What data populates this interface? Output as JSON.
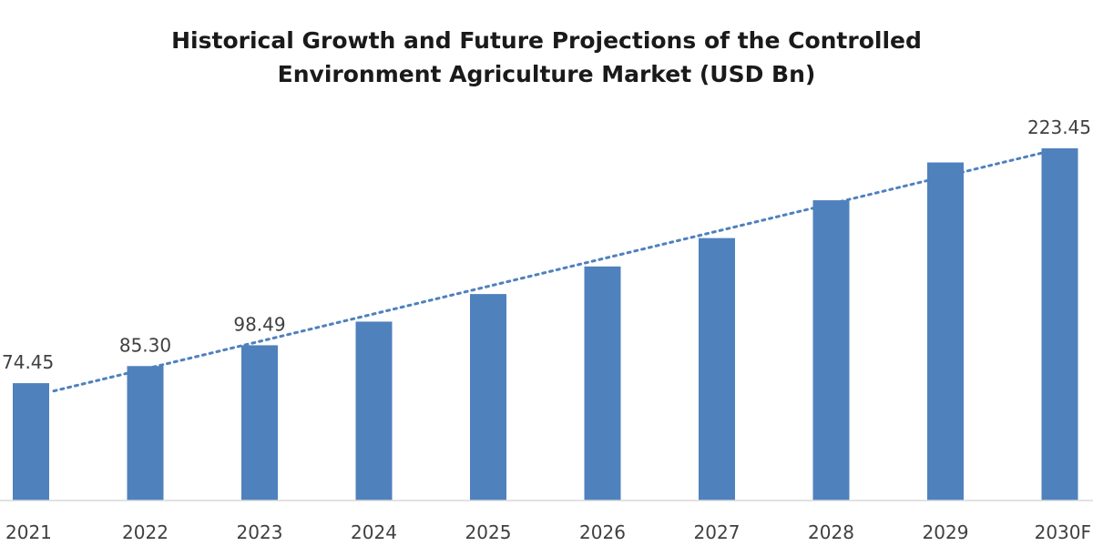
{
  "chart_data": {
    "type": "bar",
    "title_line1": "Historical Growth and Future Projections of the Controlled",
    "title_line2": "Environment Agriculture Market (USD Bn)",
    "xlabel": "",
    "ylabel": "",
    "categories": [
      "2021",
      "2022",
      "2023",
      "2024",
      "2025",
      "2026",
      "2027",
      "2028",
      "2029",
      "2030F"
    ],
    "values": [
      74.45,
      85.3,
      98.49,
      113.5,
      131.0,
      148.5,
      166.5,
      190.5,
      214.5,
      223.45
    ],
    "data_labels": [
      "74.45",
      "85.30",
      "98.49",
      "",
      "",
      "",
      "",
      "",
      "",
      "223.45"
    ],
    "ylim": [
      0,
      223.45
    ],
    "grid": false,
    "legend": "none",
    "trendline": "linear, dotted",
    "bar_color": "#4f81bd",
    "trend_color": "#4f81bd"
  }
}
